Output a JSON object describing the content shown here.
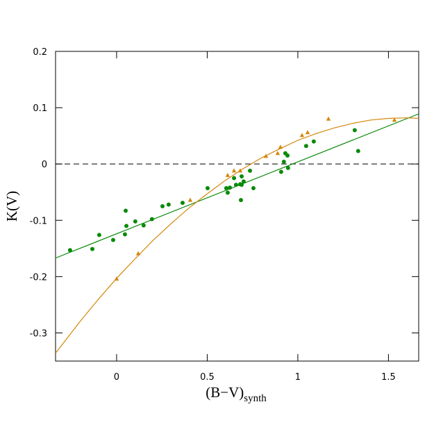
{
  "chart_data": {
    "type": "scatter",
    "xlabel": "(B−V)",
    "xlabel_sub": "synth",
    "ylabel": "K(V)",
    "xlim": [
      -0.337,
      1.667
    ],
    "ylim": [
      -0.35,
      0.2
    ],
    "xticks": [
      0,
      0.5,
      1,
      1.5
    ],
    "yticks": [
      -0.3,
      -0.2,
      -0.1,
      0,
      0.1,
      0.2
    ],
    "hline": 0,
    "series": [
      {
        "mode": "markers",
        "marker": "circle",
        "color": "#0a8a0a",
        "x": [
          -0.257,
          -0.134,
          -0.096,
          -0.019,
          0.046,
          0.05,
          0.054,
          0.103,
          0.149,
          0.195,
          0.253,
          0.287,
          0.364,
          0.502,
          0.605,
          0.613,
          0.625,
          0.648,
          0.659,
          0.682,
          0.686,
          0.69,
          0.69,
          0.701,
          0.736,
          0.755,
          0.908,
          0.923,
          0.931,
          0.943,
          0.946,
          1.046,
          1.088,
          1.314,
          1.333
        ],
        "values": [
          -0.153,
          -0.151,
          -0.126,
          -0.135,
          -0.125,
          -0.083,
          -0.11,
          -0.102,
          -0.109,
          -0.098,
          -0.075,
          -0.072,
          -0.069,
          -0.043,
          -0.043,
          -0.051,
          -0.042,
          -0.025,
          -0.037,
          -0.036,
          -0.064,
          -0.022,
          -0.037,
          -0.031,
          -0.012,
          -0.043,
          -0.014,
          0.004,
          0.019,
          0.015,
          -0.007,
          0.032,
          0.04,
          0.06,
          0.023
        ]
      },
      {
        "mode": "markers",
        "marker": "triangle",
        "color": "#d4860a",
        "x": [
          0,
          0.119,
          0.406,
          0.613,
          0.648,
          0.682,
          0.824,
          0.889,
          0.904,
          1.023,
          1.054,
          1.169,
          1.533
        ],
        "values": [
          -0.204,
          -0.159,
          -0.064,
          -0.02,
          -0.012,
          -0.012,
          0.014,
          0.019,
          0.03,
          0.051,
          0.056,
          0.08,
          0.078
        ]
      },
      {
        "mode": "line",
        "color": "#0a8a0a",
        "x": [
          -0.337,
          1.667
        ],
        "values": [
          -0.167,
          0.089
        ]
      },
      {
        "mode": "line",
        "color": "#d4860a",
        "x": [
          -0.337,
          -0.2,
          -0.1,
          0,
          0.1,
          0.2,
          0.3,
          0.4,
          0.5,
          0.6,
          0.7,
          0.8,
          0.9,
          1.0,
          1.1,
          1.2,
          1.3,
          1.4,
          1.5,
          1.6,
          1.667
        ],
        "values": [
          -0.336,
          -0.279,
          -0.24,
          -0.203,
          -0.169,
          -0.136,
          -0.106,
          -0.078,
          -0.053,
          -0.029,
          -0.008,
          0.011,
          0.027,
          0.042,
          0.054,
          0.064,
          0.072,
          0.078,
          0.081,
          0.082,
          0.081
        ]
      }
    ]
  }
}
